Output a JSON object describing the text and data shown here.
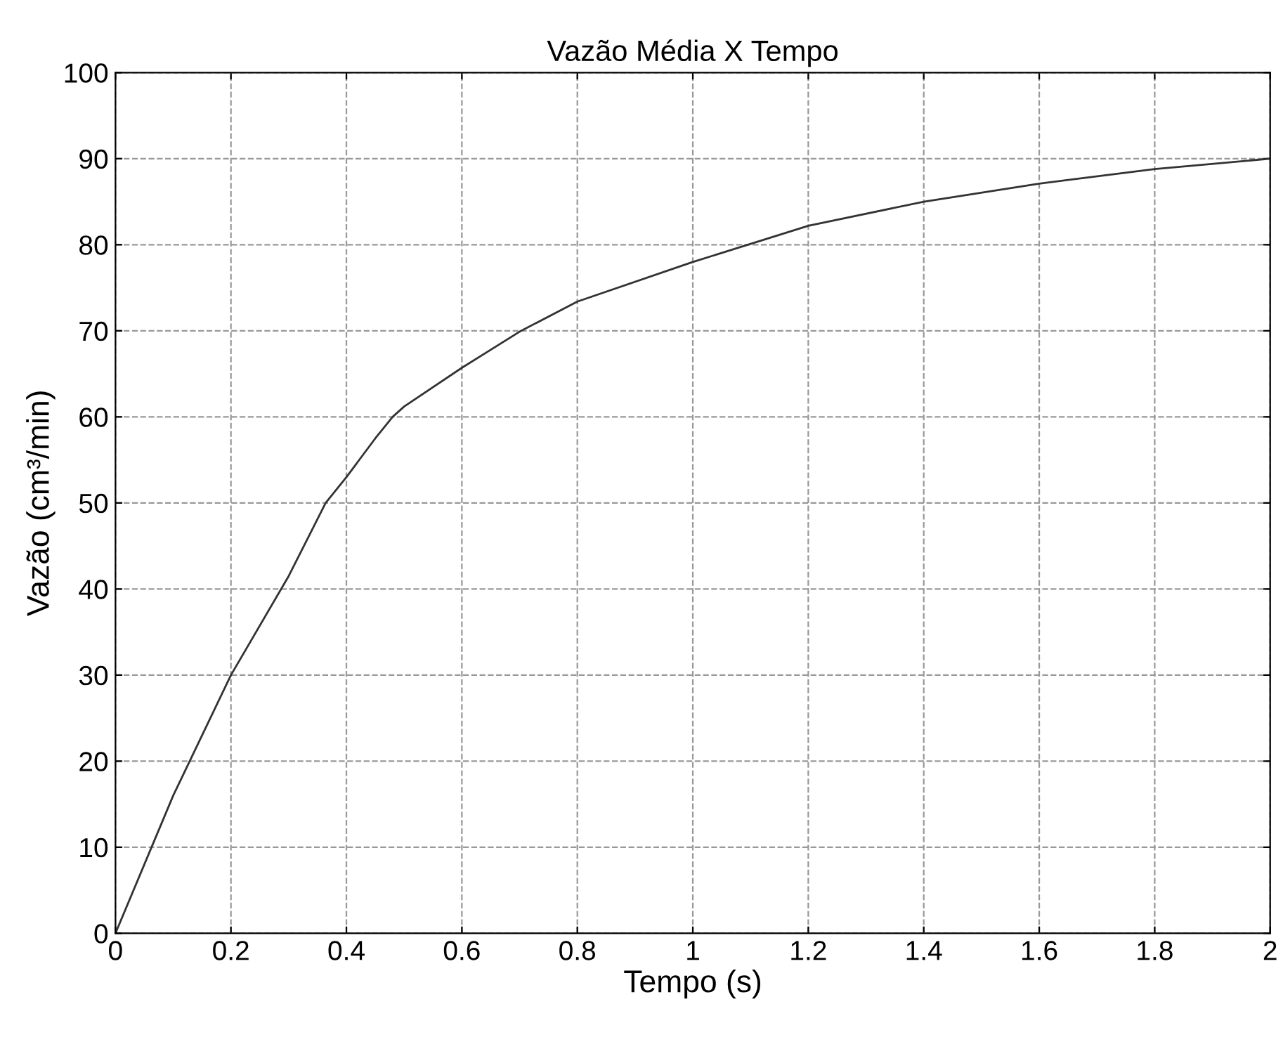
{
  "chart_data": {
    "type": "line",
    "title": "Vazão Média X Tempo",
    "xlabel": "Tempo (s)",
    "ylabel": "Vazão (cm³/min)",
    "x": [
      0,
      0.05,
      0.1,
      0.2,
      0.3,
      0.364,
      0.4,
      0.45,
      0.48,
      0.5,
      0.6,
      0.7,
      0.8,
      1.0,
      1.2,
      1.4,
      1.6,
      1.8,
      2.0
    ],
    "series": [
      {
        "color": "#333333",
        "values": [
          0,
          8,
          16,
          30,
          41.5,
          50,
          53,
          57.5,
          60,
          61.2,
          65.7,
          69.9,
          73.4,
          78.0,
          82.2,
          85.0,
          87.1,
          88.8,
          90.0
        ]
      }
    ],
    "xlim": [
      0,
      2
    ],
    "ylim": [
      0,
      100
    ],
    "xticks": [
      0,
      0.2,
      0.4,
      0.6,
      0.8,
      1,
      1.2,
      1.4,
      1.6,
      1.8,
      2
    ],
    "yticks": [
      0,
      10,
      20,
      30,
      40,
      50,
      60,
      70,
      80,
      90,
      100
    ],
    "grid": true,
    "line_style": "solid",
    "marker": "none"
  }
}
